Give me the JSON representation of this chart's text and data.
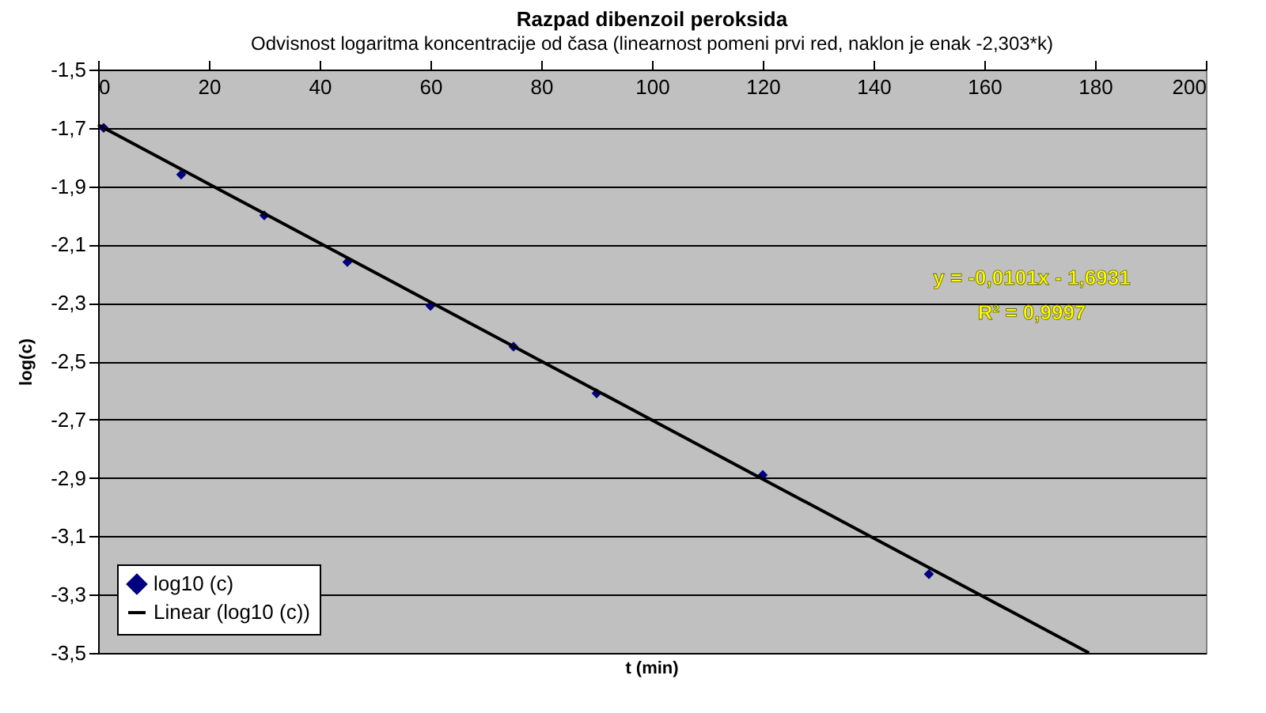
{
  "chart_data": {
    "type": "scatter",
    "title": "Razpad dibenzoil peroksida",
    "subtitle": "Odvisnost logaritma koncentracije od časa (linearnost pomeni prvi red, naklon je enak -2,303*k)",
    "xlabel": "t (min)",
    "ylabel": "log(c)",
    "series": [
      {
        "name": "log10 (c)",
        "color": "#000080",
        "x": [
          1,
          15,
          30,
          45,
          60,
          75,
          90,
          120,
          150
        ],
        "values": [
          -1.7,
          -1.86,
          -2.0,
          -2.16,
          -2.31,
          -2.45,
          -2.61,
          -2.89,
          -3.23
        ]
      },
      {
        "name": "Linear (log10 (c))",
        "type": "line",
        "marker": "none",
        "color": "#000000",
        "x": [
          0,
          178.9
        ],
        "values": [
          -1.69,
          -3.5
        ]
      }
    ],
    "xlim": [
      0,
      200
    ],
    "xticks": [
      0,
      20,
      40,
      60,
      80,
      100,
      120,
      140,
      160,
      180,
      200
    ],
    "ylim": [
      -3.5,
      -1.5
    ],
    "yticks": [
      {
        "value": -1.5,
        "label": "-1,5"
      },
      {
        "value": -1.7,
        "label": "-1,7"
      },
      {
        "value": -1.9,
        "label": "-1,9"
      },
      {
        "value": -2.1,
        "label": "-2,1"
      },
      {
        "value": -2.3,
        "label": "-2,3"
      },
      {
        "value": -2.5,
        "label": "-2,5"
      },
      {
        "value": -2.7,
        "label": "-2,7"
      },
      {
        "value": -2.9,
        "label": "-2,9"
      },
      {
        "value": -3.1,
        "label": "-3,1"
      },
      {
        "value": -3.3,
        "label": "-3,3"
      },
      {
        "value": -3.5,
        "label": "-3,5"
      }
    ],
    "annotations": [
      "y = -0,0101x - 1,6931",
      "R² = 0,9997"
    ],
    "grid": "y",
    "legend": "bottom left",
    "marker": "diamond",
    "line_style": "solid"
  }
}
